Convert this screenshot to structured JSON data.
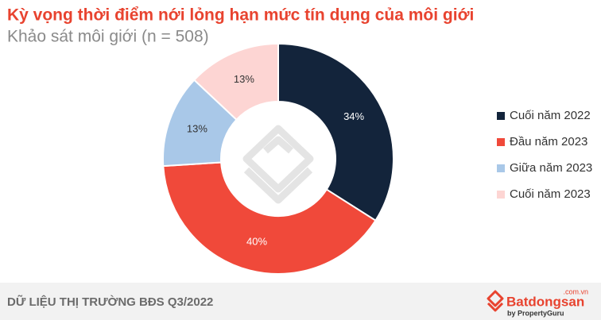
{
  "chart_data": {
    "type": "pie",
    "title": "Kỳ vọng thời điểm nới lỏng hạn mức tín dụng của môi giới",
    "subtitle": "Khảo sát môi giới (n = 508)",
    "categories": [
      "Cuối năm 2022",
      "Đầu năm 2023",
      "Giữa năm 2023",
      "Cuối năm 2023"
    ],
    "values": [
      34,
      40,
      13,
      13
    ],
    "value_labels": [
      "34%",
      "40%",
      "13%",
      "13%"
    ],
    "colors": [
      "#13243b",
      "#f0493a",
      "#a9c8e8",
      "#fdd5d3"
    ],
    "donut": true,
    "legend": "right"
  },
  "footer": {
    "source": "DỮ LIỆU THỊ TRƯỜNG BĐS Q3/2022",
    "brand": "Batdongsan",
    "domain": ".com.vn",
    "tagline": "by PropertyGuru"
  }
}
